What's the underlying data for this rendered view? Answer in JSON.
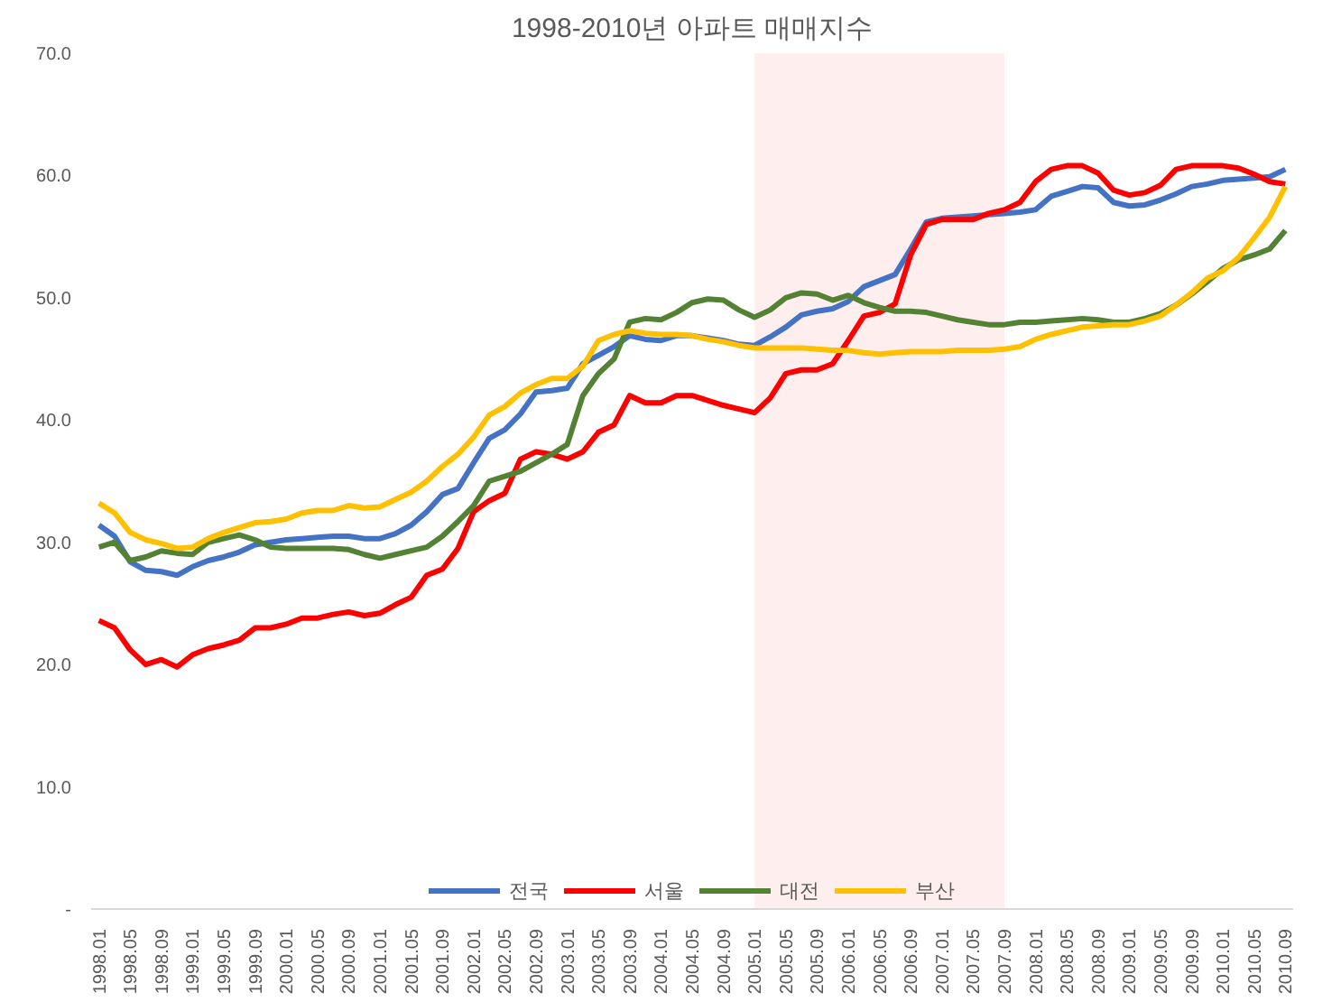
{
  "chart_data": {
    "type": "line",
    "title": "1998-2010년 아파트 매매지수",
    "categories": [
      "1998.01",
      null,
      "1998.05",
      null,
      "1998.09",
      null,
      "1999.01",
      null,
      "1999.05",
      null,
      "1999.09",
      null,
      "2000.01",
      null,
      "2000.05",
      null,
      "2000.09",
      null,
      "2001.01",
      null,
      "2001.05",
      null,
      "2001.09",
      null,
      "2002.01",
      null,
      "2002.05",
      null,
      "2002.09",
      null,
      "2003.01",
      null,
      "2003.05",
      null,
      "2003.09",
      null,
      "2004.01",
      null,
      "2004.05",
      null,
      "2004.09",
      null,
      "2005.01",
      null,
      "2005.05",
      null,
      "2005.09",
      null,
      "2006.01",
      null,
      "2006.05",
      null,
      "2006.09",
      null,
      "2007.01",
      null,
      "2007.05",
      null,
      "2007.09",
      null,
      "2008.01",
      null,
      "2008.05",
      null,
      "2008.09",
      null,
      "2009.01",
      null,
      "2009.05",
      null,
      "2009.09",
      null,
      "2010.01",
      null,
      "2010.05",
      null,
      "2010.09"
    ],
    "series": [
      {
        "name": "전국",
        "color": "#4472c4",
        "values": [
          31.4,
          30.5,
          28.4,
          27.7,
          27.6,
          27.3,
          28.0,
          28.5,
          28.8,
          29.2,
          29.8,
          30.0,
          30.2,
          30.3,
          30.4,
          30.5,
          30.5,
          30.3,
          30.3,
          30.7,
          31.4,
          32.5,
          33.9,
          34.4,
          36.5,
          38.5,
          39.2,
          40.5,
          42.3,
          42.4,
          42.6,
          44.6,
          45.3,
          46.0,
          46.9,
          46.6,
          46.5,
          46.9,
          46.9,
          46.7,
          46.5,
          46.2,
          46.1,
          46.8,
          47.6,
          48.6,
          48.9,
          49.1,
          49.7,
          50.9,
          51.4,
          51.9,
          54.0,
          56.2,
          56.5,
          56.6,
          56.7,
          56.8,
          56.9,
          57.0,
          57.2,
          58.3,
          58.7,
          59.1,
          59.0,
          57.8,
          57.5,
          57.6,
          58.0,
          58.5,
          59.1,
          59.3,
          59.6,
          59.7,
          59.8,
          59.9,
          60.5
        ]
      },
      {
        "name": "서울",
        "color": "#ff0000",
        "values": [
          23.6,
          23.0,
          21.2,
          20.0,
          20.4,
          19.8,
          20.8,
          21.3,
          21.6,
          22.0,
          23.0,
          23.0,
          23.3,
          23.8,
          23.8,
          24.1,
          24.3,
          24.0,
          24.2,
          24.9,
          25.5,
          27.3,
          27.8,
          29.5,
          32.5,
          33.4,
          34.0,
          36.8,
          37.4,
          37.2,
          36.8,
          37.4,
          39.0,
          39.6,
          42.0,
          41.4,
          41.4,
          42.0,
          42.0,
          41.6,
          41.2,
          40.9,
          40.6,
          41.8,
          43.8,
          44.1,
          44.1,
          44.6,
          46.5,
          48.5,
          48.8,
          49.5,
          53.5,
          56.0,
          56.4,
          56.4,
          56.4,
          56.9,
          57.2,
          57.8,
          59.5,
          60.5,
          60.8,
          60.8,
          60.2,
          58.8,
          58.4,
          58.6,
          59.2,
          60.5,
          60.8,
          60.8,
          60.8,
          60.6,
          60.1,
          59.5,
          59.3
        ]
      },
      {
        "name": "대전",
        "color": "#548235",
        "values": [
          29.6,
          30.0,
          28.5,
          28.8,
          29.3,
          29.1,
          29.0,
          30.0,
          30.3,
          30.6,
          30.2,
          29.6,
          29.5,
          29.5,
          29.5,
          29.5,
          29.4,
          29.0,
          28.7,
          29.0,
          29.3,
          29.6,
          30.5,
          31.7,
          33.0,
          35.0,
          35.4,
          35.8,
          36.5,
          37.2,
          38.0,
          42.0,
          43.8,
          45.0,
          48.0,
          48.3,
          48.2,
          48.8,
          49.6,
          49.9,
          49.8,
          49.0,
          48.4,
          49.0,
          50.0,
          50.4,
          50.3,
          49.8,
          50.2,
          49.6,
          49.2,
          48.9,
          48.9,
          48.8,
          48.5,
          48.2,
          48.0,
          47.8,
          47.8,
          48.0,
          48.0,
          48.1,
          48.2,
          48.3,
          48.2,
          48.0,
          48.0,
          48.3,
          48.7,
          49.4,
          50.3,
          51.3,
          52.4,
          53.1,
          53.5,
          54.0,
          55.5
        ]
      },
      {
        "name": "부산",
        "color": "#ffc000",
        "values": [
          33.2,
          32.4,
          30.8,
          30.2,
          29.9,
          29.5,
          29.6,
          30.3,
          30.8,
          31.2,
          31.6,
          31.7,
          31.9,
          32.4,
          32.6,
          32.6,
          33.0,
          32.8,
          32.9,
          33.5,
          34.1,
          35.0,
          36.2,
          37.2,
          38.6,
          40.4,
          41.1,
          42.2,
          42.9,
          43.4,
          43.4,
          44.4,
          46.5,
          47.0,
          47.3,
          47.1,
          47.0,
          47.0,
          46.9,
          46.6,
          46.4,
          46.1,
          45.9,
          45.9,
          45.9,
          45.9,
          45.8,
          45.7,
          45.7,
          45.5,
          45.4,
          45.5,
          45.6,
          45.6,
          45.6,
          45.7,
          45.7,
          45.7,
          45.8,
          46.0,
          46.6,
          47.0,
          47.3,
          47.6,
          47.7,
          47.8,
          47.8,
          48.1,
          48.5,
          49.4,
          50.4,
          51.6,
          52.2,
          53.3,
          54.9,
          56.6,
          59.1
        ]
      }
    ],
    "ylim": [
      0,
      70
    ],
    "yticks": [
      {
        "value": 0,
        "label": "-"
      },
      {
        "value": 10,
        "label": "10.0"
      },
      {
        "value": 20,
        "label": "20.0"
      },
      {
        "value": 30,
        "label": "30.0"
      },
      {
        "value": 40,
        "label": "40.0"
      },
      {
        "value": 50,
        "label": "50.0"
      },
      {
        "value": 60,
        "label": "60.0"
      },
      {
        "value": 70,
        "label": "70.0"
      }
    ],
    "bands": [
      {
        "axis": "x",
        "from": "2005.01",
        "to": "2007.09",
        "color": "#ffeeee"
      }
    ],
    "grid": false,
    "legend": "bottom",
    "line_style": "solid",
    "marker": "none"
  }
}
